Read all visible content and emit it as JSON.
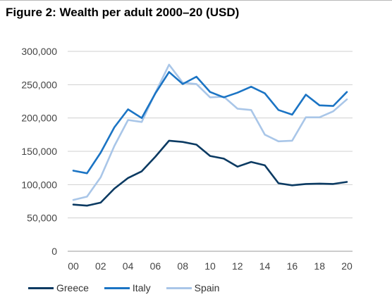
{
  "figure": {
    "title": "Figure 2: Wealth per adult 2000–20 (USD)"
  },
  "chart_data": {
    "type": "line",
    "title": "Figure 2: Wealth per adult 2000–20 (USD)",
    "xlabel": "",
    "ylabel": "",
    "ylim": [
      0,
      300000
    ],
    "xlim": [
      2000,
      2020
    ],
    "grid": true,
    "legend_position": "bottom",
    "x": [
      2000,
      2001,
      2002,
      2003,
      2004,
      2005,
      2006,
      2007,
      2008,
      2009,
      2010,
      2011,
      2012,
      2013,
      2014,
      2015,
      2016,
      2017,
      2018,
      2019,
      2020
    ],
    "x_tick_labels": [
      "00",
      "02",
      "04",
      "06",
      "08",
      "10",
      "12",
      "14",
      "16",
      "18",
      "20"
    ],
    "x_tick_values": [
      2000,
      2002,
      2004,
      2006,
      2008,
      2010,
      2012,
      2014,
      2016,
      2018,
      2020
    ],
    "y_tick_labels": [
      "300,000",
      "250,000",
      "200,000",
      "150,000",
      "100,000",
      "50,000",
      "0"
    ],
    "y_tick_values": [
      300000,
      250000,
      200000,
      150000,
      100000,
      50000,
      0
    ],
    "series": [
      {
        "name": "Greece",
        "color": "#0b3a62",
        "values": [
          70000,
          68500,
          73000,
          94000,
          110000,
          120000,
          142000,
          166000,
          164000,
          160000,
          143000,
          139000,
          127000,
          134000,
          129000,
          102000,
          99000,
          101000,
          101500,
          101000,
          104000
        ]
      },
      {
        "name": "Italy",
        "color": "#1b74c4",
        "values": [
          121000,
          117000,
          148000,
          186000,
          213000,
          200000,
          237000,
          269000,
          251000,
          262000,
          239000,
          231000,
          238000,
          247000,
          237000,
          212000,
          205000,
          235000,
          219000,
          218000,
          239000
        ]
      },
      {
        "name": "Spain",
        "color": "#a9c6e8",
        "values": [
          77000,
          82000,
          111000,
          158000,
          197000,
          194000,
          238000,
          280000,
          253000,
          251000,
          231000,
          232000,
          214000,
          212000,
          175000,
          165000,
          166000,
          201000,
          201000,
          210000,
          228000
        ]
      }
    ]
  }
}
